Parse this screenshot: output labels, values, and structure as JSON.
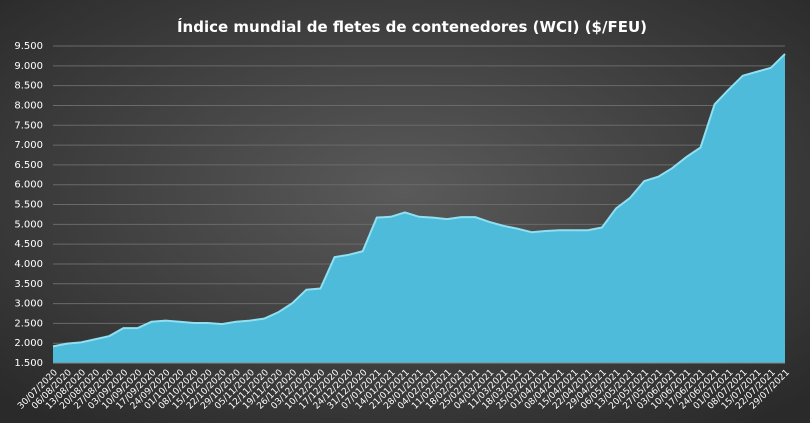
{
  "chart_data": {
    "type": "area",
    "title": "Índice mundial de fletes de contenedores (WCI) ($/FEU)",
    "color": "#4dbbd9",
    "line_color": "#8fe0f2",
    "grid": true,
    "categories": [
      "30/07/2020",
      "06/08/2020",
      "13/08/2020",
      "20/08/2020",
      "27/08/2020",
      "03/09/2020",
      "10/09/2020",
      "17/09/2020",
      "24/09/2020",
      "01/10/2020",
      "08/10/2020",
      "15/10/2020",
      "22/10/2020",
      "29/10/2020",
      "05/11/2020",
      "12/11/2020",
      "19/11/2020",
      "26/11/2020",
      "03/12/2020",
      "10/12/2020",
      "17/12/2020",
      "24/12/2020",
      "31/12/2020",
      "07/01/2021",
      "14/01/2021",
      "21/01/2021",
      "28/01/2021",
      "04/02/2021",
      "11/02/2021",
      "18/02/2021",
      "25/02/2021",
      "04/03/2021",
      "11/03/2021",
      "18/03/2021",
      "25/03/2021",
      "01/04/2021",
      "08/04/2021",
      "15/04/2021",
      "22/04/2021",
      "29/04/2021",
      "06/05/2021",
      "13/05/2021",
      "20/05/2021",
      "27/05/2021",
      "03/06/2021",
      "10/06/2021",
      "17/06/2021",
      "24/06/2021",
      "01/07/2021",
      "08/07/2021",
      "15/07/2021",
      "22/07/2021",
      "29/07/2021"
    ],
    "values": [
      1920,
      1990,
      2020,
      2100,
      2180,
      2380,
      2380,
      2540,
      2570,
      2540,
      2510,
      2510,
      2480,
      2540,
      2570,
      2620,
      2780,
      3010,
      3350,
      3380,
      4170,
      4230,
      4320,
      5170,
      5190,
      5300,
      5190,
      5170,
      5130,
      5180,
      5180,
      5060,
      4960,
      4890,
      4800,
      4830,
      4850,
      4850,
      4850,
      4920,
      5400,
      5670,
      6090,
      6200,
      6420,
      6700,
      6940,
      8030,
      8400,
      8750,
      8850,
      8950,
      9300
    ],
    "ylim": [
      1500,
      9500
    ],
    "yticks": [
      {
        "value": 1500,
        "label": "1.500"
      },
      {
        "value": 2000,
        "label": "2.000"
      },
      {
        "value": 2500,
        "label": "2.500"
      },
      {
        "value": 3000,
        "label": "3.000"
      },
      {
        "value": 3500,
        "label": "3.500"
      },
      {
        "value": 4000,
        "label": "4.000"
      },
      {
        "value": 4500,
        "label": "4.500"
      },
      {
        "value": 5000,
        "label": "5.000"
      },
      {
        "value": 5500,
        "label": "5.500"
      },
      {
        "value": 6000,
        "label": "6.000"
      },
      {
        "value": 6500,
        "label": "6.500"
      },
      {
        "value": 7000,
        "label": "7.000"
      },
      {
        "value": 7500,
        "label": "7.500"
      },
      {
        "value": 8000,
        "label": "8.000"
      },
      {
        "value": 8500,
        "label": "8.500"
      },
      {
        "value": 9000,
        "label": "9.000"
      },
      {
        "value": 9500,
        "label": "9.500"
      }
    ]
  }
}
